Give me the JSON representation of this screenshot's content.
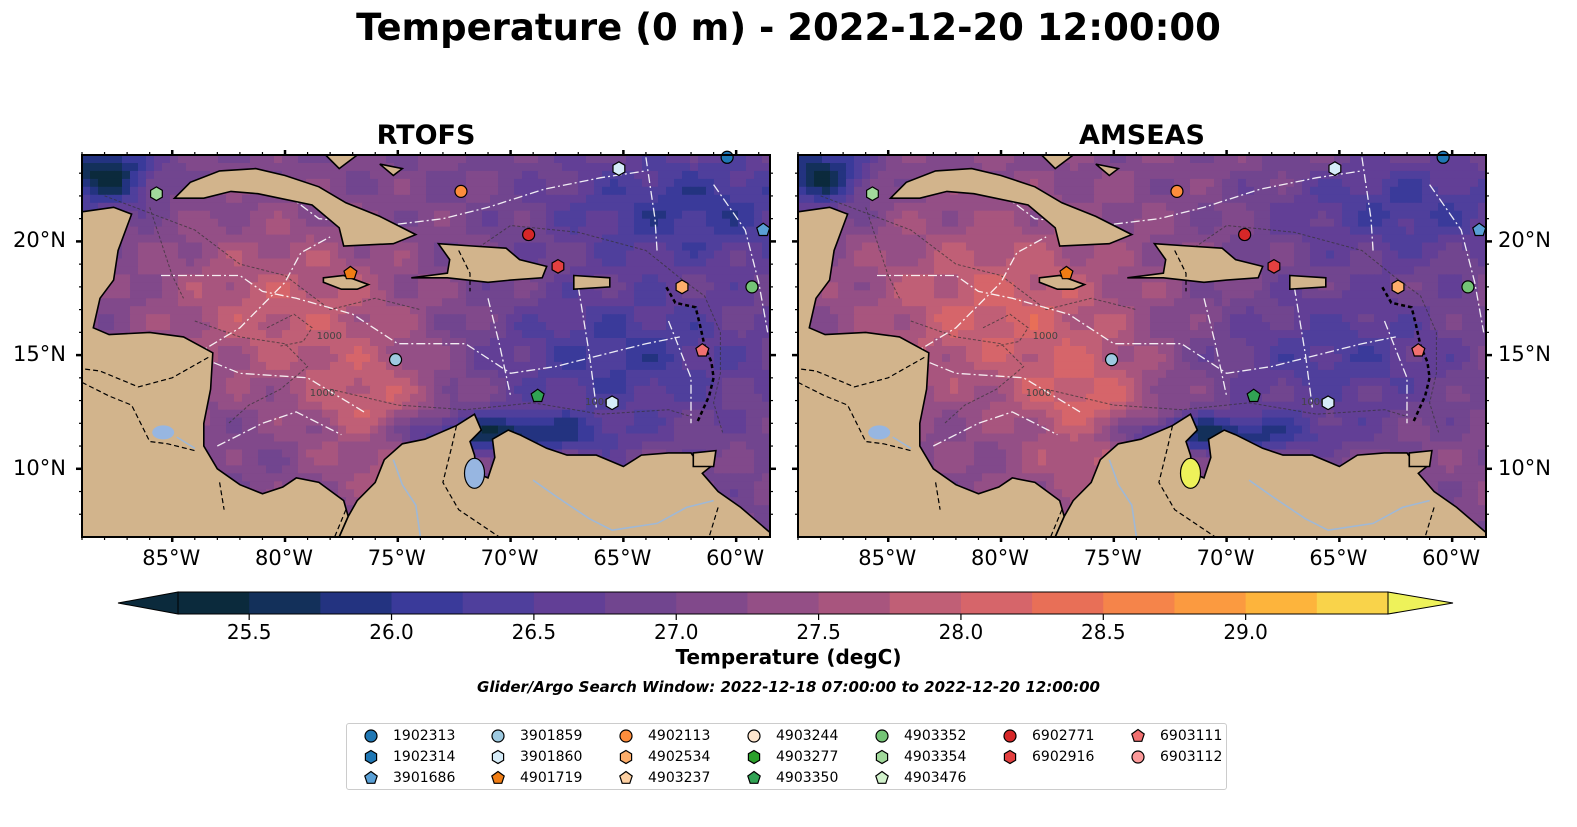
{
  "title": "Temperature (0 m) - 2022-12-20 12:00:00",
  "panels": [
    {
      "title": "RTOFS",
      "model": "rtofs"
    },
    {
      "title": "AMSEAS",
      "model": "amseas"
    }
  ],
  "map_extent": {
    "lon_min": -89,
    "lon_max": -58.5,
    "lat_min": 7,
    "lat_max": 23.8
  },
  "lon_ticks": [
    {
      "lon": -85,
      "label": "85°W"
    },
    {
      "lon": -80,
      "label": "80°W"
    },
    {
      "lon": -75,
      "label": "75°W"
    },
    {
      "lon": -70,
      "label": "70°W"
    },
    {
      "lon": -65,
      "label": "65°W"
    },
    {
      "lon": -60,
      "label": "60°W"
    }
  ],
  "lat_ticks": [
    {
      "lat": 20,
      "label": "20°N"
    },
    {
      "lat": 15,
      "label": "15°N"
    },
    {
      "lat": 10,
      "label": "10°N"
    }
  ],
  "contour_labels": [
    "1000",
    "1000",
    "1000"
  ],
  "colorbar": {
    "title": "Temperature (degC)",
    "min": 25.25,
    "max": 29.5,
    "step": 0.25,
    "extend": "both",
    "ticks": [
      {
        "value": 25.5,
        "label": "25.5"
      },
      {
        "value": 26.0,
        "label": "26.0"
      },
      {
        "value": 26.5,
        "label": "26.5"
      },
      {
        "value": 27.0,
        "label": "27.0"
      },
      {
        "value": 27.5,
        "label": "27.5"
      },
      {
        "value": 28.0,
        "label": "28.0"
      },
      {
        "value": 28.5,
        "label": "28.5"
      },
      {
        "value": 29.0,
        "label": "29.0"
      }
    ],
    "colors": [
      "#0b2a3c",
      "#13305a",
      "#233380",
      "#3a3a9a",
      "#4f3f9c",
      "#623f96",
      "#71458f",
      "#81498b",
      "#944f86",
      "#a8557e",
      "#c05f76",
      "#d6656a",
      "#e86f57",
      "#f5844a",
      "#fb9a40",
      "#fdb43c",
      "#f9d34a"
    ],
    "under_color": "#0b2a3c",
    "over_color": "#eef25a"
  },
  "search_window": "Glider/Argo Search Window: 2022-12-18 07:00:00 to 2022-12-20 12:00:00",
  "colors": {
    "land": "#d2b48c",
    "lakes": "#97b6e1",
    "background": "#ffffff"
  },
  "legend": {
    "columns": [
      [
        {
          "id": "1902313",
          "marker": "circle",
          "color": "#1f77b4"
        },
        {
          "id": "1902314",
          "marker": "hexagon",
          "color": "#1f77b4"
        },
        {
          "id": "3901686",
          "marker": "pentagon",
          "color": "#5aa0d6"
        }
      ],
      [
        {
          "id": "3901859",
          "marker": "circle",
          "color": "#9ecae1"
        },
        {
          "id": "3901860",
          "marker": "hexagon",
          "color": "#d6ecf8"
        },
        {
          "id": "4901719",
          "marker": "pentagon",
          "color": "#f07d14"
        }
      ],
      [
        {
          "id": "4902113",
          "marker": "circle",
          "color": "#fd8d3c"
        },
        {
          "id": "4902534",
          "marker": "hexagon",
          "color": "#fdae6b"
        },
        {
          "id": "4903237",
          "marker": "pentagon",
          "color": "#fdd0a2"
        }
      ],
      [
        {
          "id": "4903244",
          "marker": "circle",
          "color": "#fee6ce"
        },
        {
          "id": "4903277",
          "marker": "hexagon",
          "color": "#2ca02c"
        },
        {
          "id": "4903350",
          "marker": "pentagon",
          "color": "#31a354"
        }
      ],
      [
        {
          "id": "4903352",
          "marker": "circle",
          "color": "#74c476"
        },
        {
          "id": "4903354",
          "marker": "hexagon",
          "color": "#a1d99b"
        },
        {
          "id": "4903476",
          "marker": "pentagon",
          "color": "#d2f2cc"
        }
      ],
      [
        {
          "id": "6902771",
          "marker": "circle",
          "color": "#d62728"
        },
        {
          "id": "6902916",
          "marker": "hexagon",
          "color": "#e34040"
        }
      ],
      [
        {
          "id": "6903111",
          "marker": "pentagon",
          "color": "#f07070"
        },
        {
          "id": "6903112",
          "marker": "circle",
          "color": "#fc9a9a"
        }
      ]
    ]
  },
  "platforms": [
    {
      "id": "4903354",
      "lon": -85.7,
      "lat": 22.1
    },
    {
      "id": "4902113",
      "lon": -72.2,
      "lat": 22.2
    },
    {
      "id": "3901860",
      "lon": -65.2,
      "lat": 23.2
    },
    {
      "id": "1902313",
      "lon": -60.4,
      "lat": 23.7
    },
    {
      "id": "3901686",
      "lon": -58.8,
      "lat": 20.5
    },
    {
      "id": "6902771",
      "lon": -69.2,
      "lat": 20.3
    },
    {
      "id": "6902916",
      "lon": -67.9,
      "lat": 18.9
    },
    {
      "id": "4901719",
      "lon": -77.1,
      "lat": 18.6
    },
    {
      "id": "4902534",
      "lon": -62.4,
      "lat": 18.0
    },
    {
      "id": "4903352",
      "lon": -59.3,
      "lat": 18.0
    },
    {
      "id": "6903111",
      "lon": -61.5,
      "lat": 15.2
    },
    {
      "id": "3901859",
      "lon": -75.1,
      "lat": 14.8
    },
    {
      "id": "4903350",
      "lon": -68.8,
      "lat": 13.2
    },
    {
      "id": "3901860",
      "lon": -65.5,
      "lat": 12.9
    }
  ]
}
